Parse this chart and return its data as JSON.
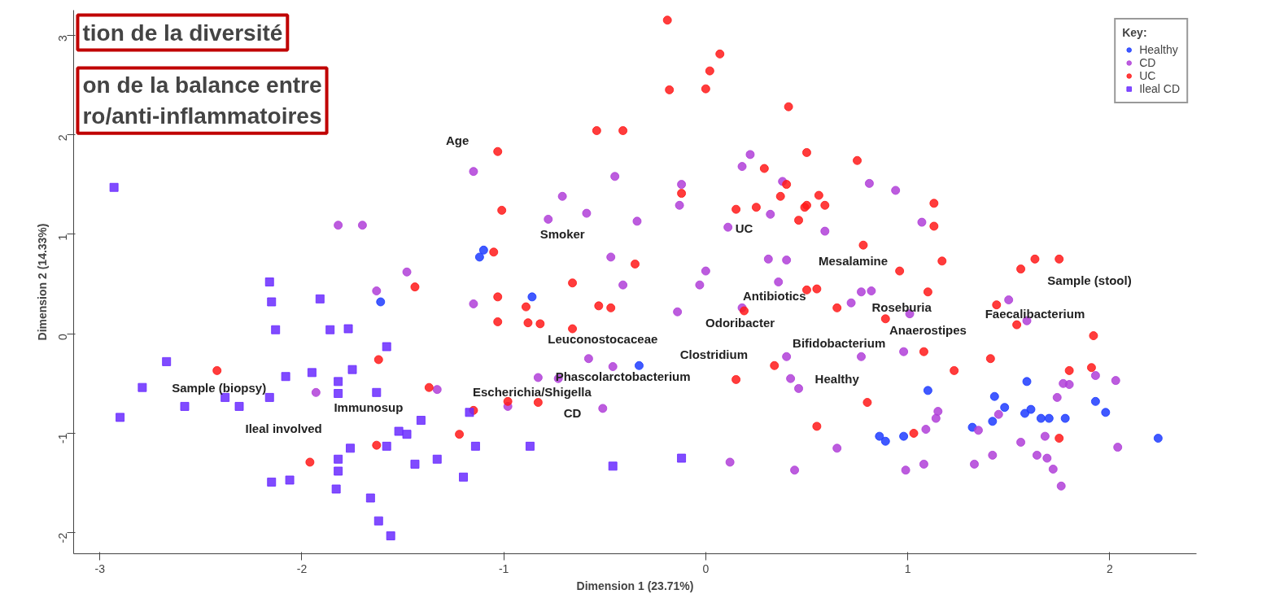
{
  "chart_data": {
    "type": "scatter",
    "xlabel": "Dimension 1 (23.71%)",
    "ylabel": "Dimension 2 (14.33%)",
    "legend_title": "Key:",
    "legend": "top right",
    "grid": false,
    "xlim": [
      -3.13,
      2.43
    ],
    "ylim": [
      -2.21,
      3.25
    ],
    "xticks": [
      -3,
      -2,
      -1,
      0,
      1,
      2
    ],
    "yticks": [
      -2,
      -1,
      0,
      1,
      2,
      3
    ],
    "series": [
      {
        "name": "Healthy",
        "color": "#1f3cff",
        "marker": "circle",
        "x": [
          -1.1,
          -1.12,
          -0.86,
          -0.33,
          -1.61,
          1.1,
          1.59,
          1.43,
          1.48,
          1.58,
          1.61,
          1.66,
          1.7,
          1.78,
          1.93,
          1.98,
          1.32,
          1.42,
          0.86,
          0.89,
          0.98,
          2.24
        ],
        "values": [
          0.84,
          0.77,
          0.37,
          -0.32,
          0.32,
          -0.57,
          -0.48,
          -0.63,
          -0.74,
          -0.8,
          -0.76,
          -0.85,
          -0.85,
          -0.85,
          -0.68,
          -0.79,
          -0.94,
          -0.88,
          -1.03,
          -1.08,
          -1.03,
          -1.05
        ]
      },
      {
        "name": "CD",
        "color": "#b040d8",
        "marker": "circle",
        "x": [
          0.44,
          1.74,
          1.77,
          1.8,
          1.93,
          2.03,
          1.15,
          1.14,
          1.09,
          1.35,
          1.45,
          1.68,
          1.56,
          0.65,
          2.04,
          1.42,
          1.64,
          1.69,
          1.72,
          1.76,
          1.33,
          1.08,
          0.99,
          1.5,
          1.59,
          0.77,
          0.98,
          -1.15,
          -0.45,
          -0.71,
          -0.59,
          -0.78,
          -0.34,
          -0.12,
          -0.13,
          0.18,
          0.32,
          0.11,
          0.31,
          0.4,
          0.0,
          -0.03,
          -0.47,
          -0.41,
          0.36,
          -0.14,
          0.18,
          -1.15,
          0.4,
          0.42,
          0.46,
          0.12,
          -0.46,
          -0.58,
          -0.51,
          -0.98,
          -0.73,
          -0.83,
          0.59,
          -1.48,
          -1.63,
          -1.82,
          -1.7,
          -1.93,
          -1.33,
          0.22,
          0.38,
          0.81,
          0.94,
          1.07,
          0.77,
          0.82,
          0.72,
          1.01
        ],
        "values": [
          -1.37,
          -0.64,
          -0.5,
          -0.51,
          -0.42,
          -0.47,
          -0.78,
          -0.85,
          -0.96,
          -0.97,
          -0.81,
          -1.03,
          -1.09,
          -1.15,
          -1.14,
          -1.22,
          -1.22,
          -1.25,
          -1.36,
          -1.53,
          -1.31,
          -1.31,
          -1.37,
          0.34,
          0.13,
          -0.23,
          -0.18,
          1.63,
          1.58,
          1.38,
          1.21,
          1.15,
          1.13,
          1.5,
          1.29,
          1.68,
          1.2,
          1.07,
          0.75,
          0.74,
          0.63,
          0.49,
          0.77,
          0.49,
          0.52,
          0.22,
          0.26,
          0.3,
          -0.23,
          -0.45,
          -0.55,
          -1.29,
          -0.33,
          -0.25,
          -0.75,
          -0.73,
          -0.45,
          -0.44,
          1.03,
          0.62,
          0.43,
          1.09,
          1.09,
          -0.59,
          -0.56,
          1.8,
          1.53,
          1.51,
          1.44,
          1.12,
          0.42,
          0.43,
          0.31,
          0.2
        ]
      },
      {
        "name": "UC",
        "color": "#ff1a1a",
        "marker": "circle",
        "x": [
          -0.19,
          0.07,
          0.02,
          -0.18,
          0.0,
          0.41,
          -0.54,
          -0.41,
          -1.03,
          0.5,
          0.29,
          0.4,
          -0.12,
          0.37,
          -1.01,
          0.15,
          0.25,
          0.49,
          0.75,
          0.56,
          0.5,
          0.59,
          0.46,
          1.13,
          1.13,
          -0.35,
          -1.05,
          -0.66,
          -0.53,
          -0.47,
          -1.03,
          -0.89,
          -1.03,
          -0.88,
          -0.82,
          -0.66,
          0.19,
          0.5,
          0.55,
          0.34,
          0.15,
          -0.98,
          -0.83,
          -1.15,
          -1.22,
          -1.44,
          -2.42,
          -1.62,
          -1.37,
          -1.63,
          -1.96,
          0.78,
          1.17,
          0.96,
          1.1,
          0.65,
          0.89,
          1.08,
          1.63,
          1.75,
          1.56,
          1.44,
          1.54,
          1.92,
          1.41,
          1.91,
          1.23,
          1.8,
          0.8,
          0.55,
          1.03,
          1.75
        ],
        "values": [
          3.15,
          2.81,
          2.64,
          2.45,
          2.46,
          2.28,
          2.04,
          2.04,
          1.83,
          1.82,
          1.66,
          1.5,
          1.41,
          1.38,
          1.24,
          1.25,
          1.27,
          1.27,
          1.74,
          1.39,
          1.29,
          1.29,
          1.14,
          1.31,
          1.08,
          0.7,
          0.82,
          0.51,
          0.28,
          0.26,
          0.37,
          0.27,
          0.12,
          0.11,
          0.1,
          0.05,
          0.23,
          0.44,
          0.45,
          -0.32,
          -0.46,
          -0.68,
          -0.69,
          -0.77,
          -1.01,
          0.47,
          -0.37,
          -0.26,
          -0.54,
          -1.12,
          -1.29,
          0.89,
          0.73,
          0.63,
          0.42,
          0.26,
          0.15,
          -0.18,
          0.75,
          0.75,
          0.65,
          0.29,
          0.09,
          -0.02,
          -0.25,
          -0.34,
          -0.37,
          -0.37,
          -0.69,
          -0.93,
          -1.0,
          -1.05
        ]
      },
      {
        "name": "Ileal CD",
        "color": "#6a2cff",
        "marker": "square",
        "x": [
          -2.93,
          -2.16,
          -2.15,
          -1.91,
          -2.13,
          -1.86,
          -1.77,
          -1.58,
          -2.67,
          -2.08,
          -1.95,
          -1.75,
          -1.82,
          -2.79,
          -1.82,
          -1.63,
          -2.38,
          -2.58,
          -2.31,
          -2.16,
          -2.9,
          -1.41,
          -1.52,
          -1.48,
          -1.76,
          -1.58,
          -1.82,
          -1.33,
          -1.44,
          -1.82,
          -2.15,
          -2.06,
          -1.83,
          -1.66,
          -1.62,
          -1.56,
          -1.17,
          -1.14,
          -0.87,
          -1.2,
          -0.46,
          -0.12
        ],
        "values": [
          1.47,
          0.52,
          0.32,
          0.35,
          0.04,
          0.04,
          0.05,
          -0.13,
          -0.28,
          -0.43,
          -0.39,
          -0.36,
          -0.48,
          -0.54,
          -0.6,
          -0.59,
          -0.64,
          -0.73,
          -0.73,
          -0.64,
          -0.84,
          -0.87,
          -0.98,
          -1.01,
          -1.15,
          -1.13,
          -1.26,
          -1.26,
          -1.31,
          -1.38,
          -1.49,
          -1.47,
          -1.56,
          -1.65,
          -1.88,
          -2.03,
          -0.79,
          -1.13,
          -1.13,
          -1.44,
          -1.33,
          -1.25
        ]
      }
    ],
    "annotations": [
      "tion de la diversité",
      "on de la balance entre\nro/anti-inflammatoires",
      "Age",
      "Smoker",
      "UC",
      "Mesalamine",
      "Antibiotics",
      "Odoribacter",
      "Roseburia",
      "Faecalibacterium",
      "Anaerostipes",
      "Bifidobacterium",
      "Leuconostocaceae",
      "Clostridium",
      "Phascolarctobacterium",
      "Escherichia/Shigella",
      "CD",
      "Healthy",
      "Sample (stool)",
      "Sample (biopsy)",
      "Immunosup",
      "Ileal involved"
    ]
  }
}
